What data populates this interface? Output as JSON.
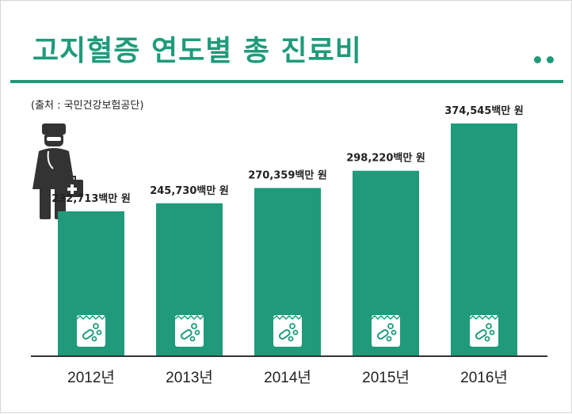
{
  "title": "고지혈증 연도별 총 진료비",
  "source": "(출처 : 국민건강보험공단)",
  "colors": {
    "accent": "#1f9b7b",
    "text": "#222222",
    "icon": "#333333"
  },
  "icons": {
    "figure": "doctor-icon",
    "bar_badge": "medicine-bag-icon"
  },
  "chart_data": {
    "type": "bar",
    "title": "고지혈증 연도별 총 진료비",
    "categories": [
      "2012년",
      "2013년",
      "2014년",
      "2015년",
      "2016년"
    ],
    "values": [
      232713,
      245730,
      270359,
      298220,
      374545
    ],
    "value_labels": [
      "232,713백만 원",
      "245,730백만 원",
      "270,359백만 원",
      "298,220백만 원",
      "374,545백만 원"
    ],
    "unit": "백만 원",
    "xlabel": "",
    "ylabel": "",
    "grid": false,
    "legend": "none"
  }
}
